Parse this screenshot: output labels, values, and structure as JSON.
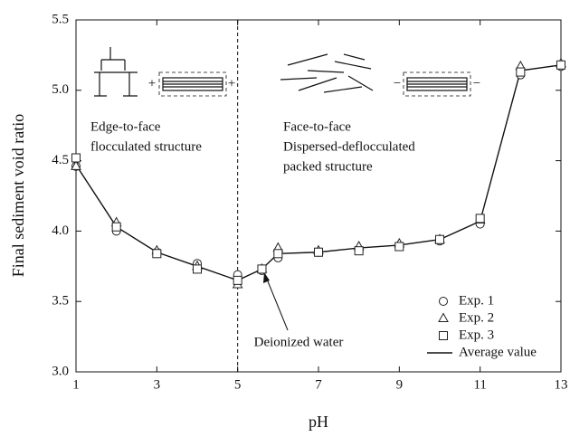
{
  "chart_data": {
    "type": "line",
    "x_label": "pH",
    "y_label": "Final sediment void ratio",
    "x": [
      1,
      2,
      3,
      4,
      5,
      5.6,
      6,
      7,
      8,
      9,
      10,
      11,
      12,
      13
    ],
    "series": [
      {
        "name": "Exp. 1",
        "marker": "circle",
        "line": false,
        "color": "#222222",
        "values": [
          4.46,
          4.0,
          3.85,
          3.77,
          3.69,
          3.72,
          3.81,
          3.85,
          3.87,
          3.89,
          3.93,
          4.05,
          5.11,
          5.17
        ]
      },
      {
        "name": "Exp. 2",
        "marker": "triangle",
        "line": false,
        "color": "#222222",
        "values": [
          4.46,
          4.06,
          3.86,
          3.75,
          3.62,
          3.73,
          3.88,
          3.86,
          3.89,
          3.91,
          3.94,
          4.08,
          5.17,
          5.19
        ]
      },
      {
        "name": "Exp. 3",
        "marker": "square",
        "line": false,
        "color": "#222222",
        "values": [
          4.52,
          4.03,
          3.84,
          3.73,
          3.65,
          3.73,
          3.84,
          3.85,
          3.86,
          3.89,
          3.94,
          4.09,
          5.13,
          5.18
        ]
      },
      {
        "name": "Average value",
        "marker": "none",
        "line": true,
        "color": "#111111",
        "values": [
          4.47,
          4.03,
          3.85,
          3.75,
          3.65,
          3.73,
          3.84,
          3.85,
          3.88,
          3.9,
          3.94,
          4.07,
          5.14,
          5.18
        ]
      }
    ],
    "xlim": [
      1,
      13
    ],
    "xticks": [
      1,
      3,
      5,
      7,
      9,
      11,
      13
    ],
    "ylim": [
      3,
      5.5
    ],
    "yticks": [
      {
        "value": 3,
        "label": "3.0"
      },
      3.5,
      {
        "value": 4,
        "label": "4.0"
      },
      4.5,
      {
        "value": 5,
        "label": "5.0"
      },
      5.5
    ],
    "divider_x": 5,
    "legend": "lower right",
    "annotations": {
      "left_regime": [
        "Edge-to-face",
        "flocculated structure"
      ],
      "right_regime": [
        "Face-to-face",
        "Dispersed-deflocculated",
        "packed structure"
      ],
      "arrow_label": "Deionized water",
      "left_charges": [
        "+",
        "+"
      ],
      "right_charges": [
        "−",
        "−"
      ]
    }
  }
}
